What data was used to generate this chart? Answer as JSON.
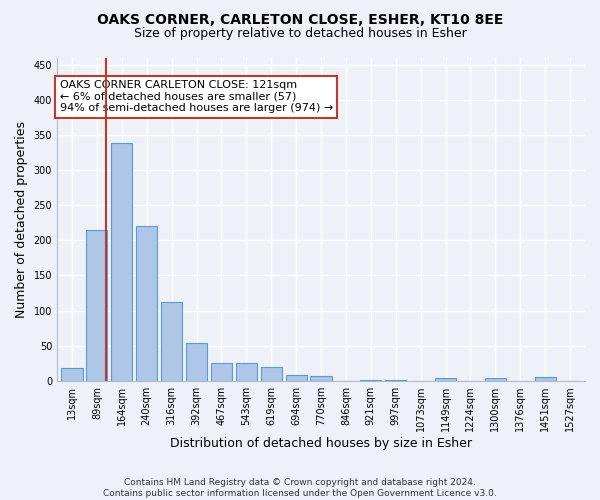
{
  "title": "OAKS CORNER, CARLETON CLOSE, ESHER, KT10 8EE",
  "subtitle": "Size of property relative to detached houses in Esher",
  "xlabel": "Distribution of detached houses by size in Esher",
  "ylabel": "Number of detached properties",
  "categories": [
    "13sqm",
    "89sqm",
    "164sqm",
    "240sqm",
    "316sqm",
    "392sqm",
    "467sqm",
    "543sqm",
    "619sqm",
    "694sqm",
    "770sqm",
    "846sqm",
    "921sqm",
    "997sqm",
    "1073sqm",
    "1149sqm",
    "1224sqm",
    "1300sqm",
    "1376sqm",
    "1451sqm",
    "1527sqm"
  ],
  "values": [
    18,
    215,
    338,
    221,
    113,
    54,
    26,
    26,
    20,
    9,
    7,
    0,
    1,
    1,
    0,
    4,
    0,
    4,
    0,
    5,
    0
  ],
  "bar_color": "#aec6e8",
  "bar_edge_color": "#5b9bd5",
  "vline_x": 1.37,
  "vline_color": "#c0392b",
  "annotation_text": "OAKS CORNER CARLETON CLOSE: 121sqm\n← 6% of detached houses are smaller (57)\n94% of semi-detached houses are larger (974) →",
  "annotation_box_color": "white",
  "annotation_box_edgecolor": "#c0392b",
  "ylim": [
    0,
    460
  ],
  "yticks": [
    0,
    50,
    100,
    150,
    200,
    250,
    300,
    350,
    400,
    450
  ],
  "footnote": "Contains HM Land Registry data © Crown copyright and database right 2024.\nContains public sector information licensed under the Open Government Licence v3.0.",
  "background_color": "#eef2f8",
  "grid_color": "white",
  "title_fontsize": 10,
  "subtitle_fontsize": 9,
  "axis_label_fontsize": 9,
  "tick_fontsize": 7,
  "footnote_fontsize": 6.5,
  "annotation_fontsize": 8
}
